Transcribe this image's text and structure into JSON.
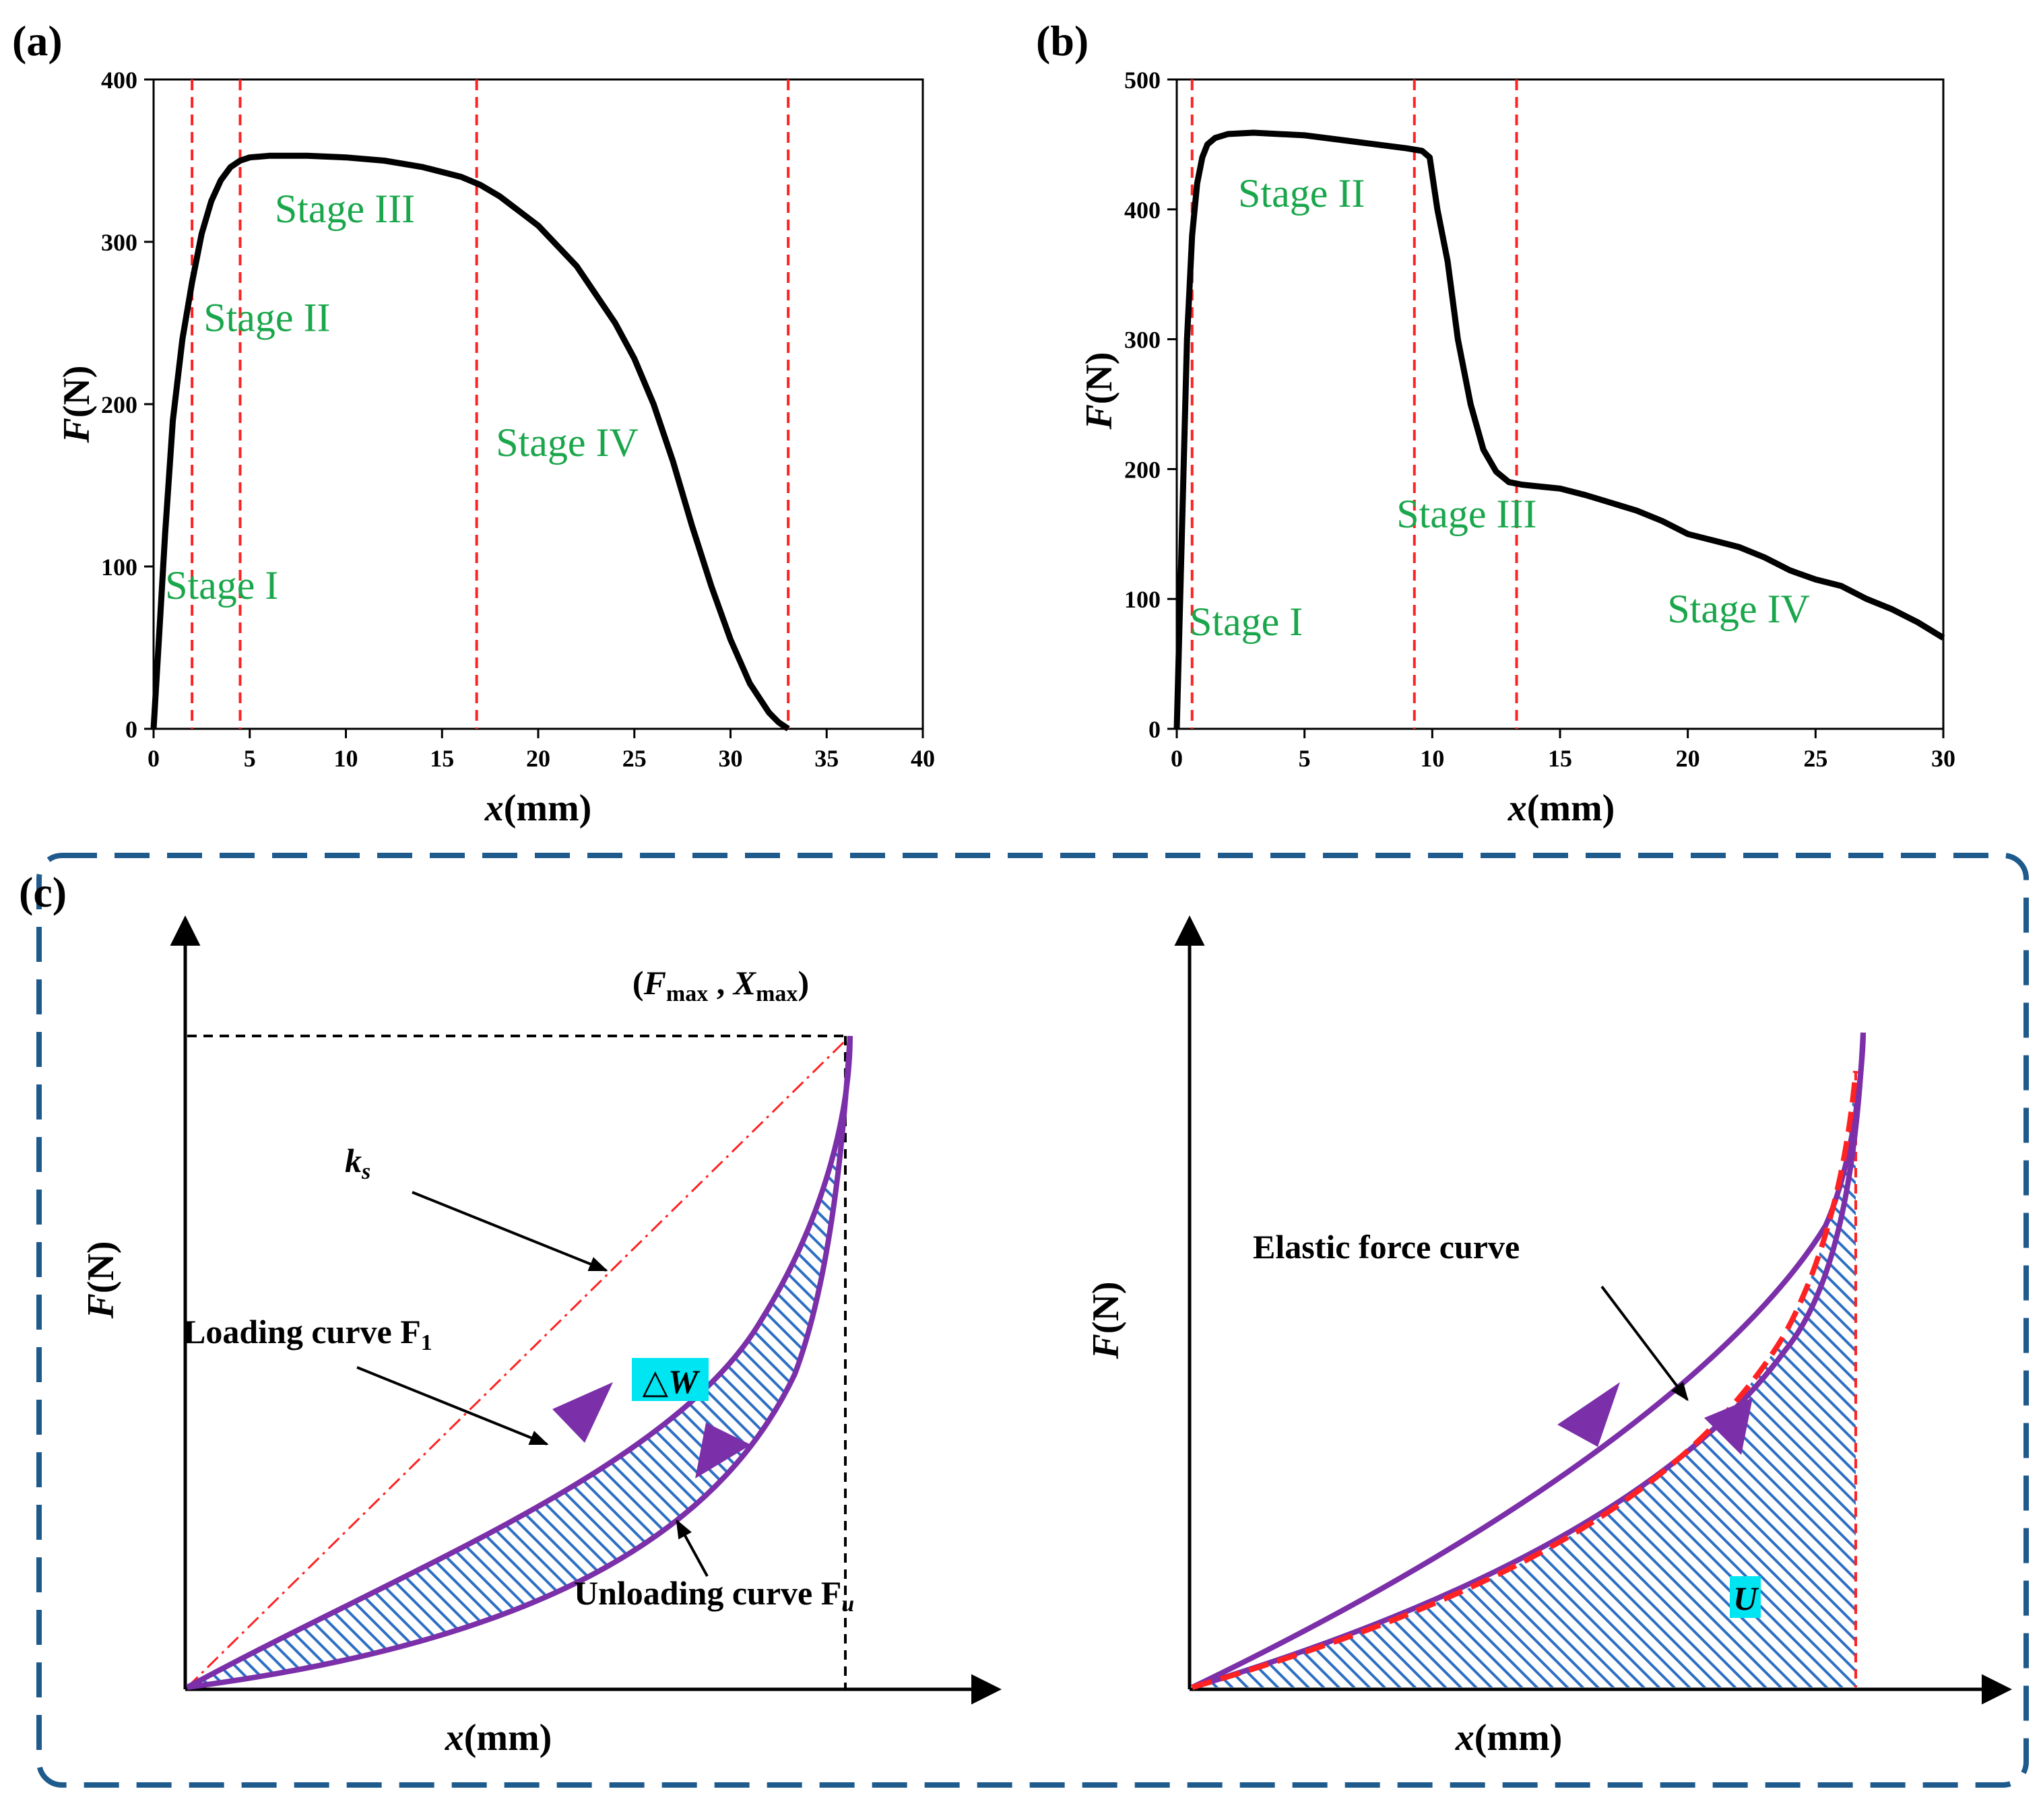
{
  "colors": {
    "curve": "#000000",
    "stage_line": "#ff2222",
    "stage_text": "#1aa64b",
    "purple": "#7b2fa8",
    "hatch": "#2e6fc4",
    "highlight": "#00e5f2",
    "frame": "#1f5a8c",
    "ks_line": "#ff2222",
    "elastic": "#ff2222"
  },
  "chart_data": [
    {
      "panel": "(a)",
      "type": "line",
      "xlabel_var": "x",
      "xlabel_unit": "(mm)",
      "ylabel_var": "F",
      "ylabel_unit": "(N)",
      "xlim": [
        0,
        40
      ],
      "ylim": [
        0,
        400
      ],
      "xticks": [
        0,
        5,
        10,
        15,
        20,
        25,
        30,
        35,
        40
      ],
      "yticks": [
        0,
        100,
        200,
        300,
        400
      ],
      "stage_lines": [
        2.0,
        4.5,
        16.8,
        33.0
      ],
      "stage_labels": [
        {
          "text": "Stage I",
          "x": 0.6,
          "y": 80
        },
        {
          "text": "Stage II",
          "x": 2.6,
          "y": 245
        },
        {
          "text": "Stage III",
          "x": 6.3,
          "y": 312
        },
        {
          "text": "Stage IV",
          "x": 17.8,
          "y": 168
        }
      ],
      "series": [
        {
          "name": "force",
          "x": [
            0,
            0.3,
            0.6,
            1.0,
            1.5,
            2.0,
            2.5,
            3.0,
            3.5,
            4.0,
            4.5,
            5.0,
            6.0,
            8.0,
            10.0,
            12.0,
            14.0,
            16.0,
            17.0,
            18.0,
            20.0,
            22.0,
            24.0,
            25.0,
            26.0,
            27.0,
            28.0,
            29.0,
            30.0,
            31.0,
            32.0,
            32.5,
            33.0
          ],
          "y": [
            0,
            60,
            120,
            190,
            240,
            275,
            305,
            325,
            338,
            346,
            350,
            352,
            353,
            353,
            352,
            350,
            346,
            340,
            335,
            328,
            310,
            285,
            250,
            228,
            200,
            165,
            125,
            88,
            55,
            28,
            10,
            4,
            0
          ]
        }
      ]
    },
    {
      "panel": "(b)",
      "type": "line",
      "xlabel_var": "x",
      "xlabel_unit": "(mm)",
      "ylabel_var": "F",
      "ylabel_unit": "(N)",
      "xlim": [
        0,
        30
      ],
      "ylim": [
        0,
        500
      ],
      "xticks": [
        0,
        5,
        10,
        15,
        20,
        25,
        30
      ],
      "yticks": [
        0,
        100,
        200,
        300,
        400,
        500
      ],
      "stage_lines": [
        0.6,
        9.3,
        13.3
      ],
      "stage_labels": [
        {
          "text": "Stage I",
          "x": 0.5,
          "y": 72
        },
        {
          "text": "Stage II",
          "x": 2.4,
          "y": 402
        },
        {
          "text": "Stage III",
          "x": 8.6,
          "y": 155
        },
        {
          "text": "Stage IV",
          "x": 19.2,
          "y": 82
        }
      ],
      "series": [
        {
          "name": "force",
          "x": [
            0,
            0.2,
            0.4,
            0.6,
            0.8,
            1.0,
            1.2,
            1.5,
            2.0,
            3.0,
            5.0,
            7.0,
            9.0,
            9.6,
            9.9,
            10.2,
            10.6,
            11.0,
            11.5,
            12.0,
            12.5,
            13.0,
            13.5,
            14.0,
            15.0,
            16.0,
            17.0,
            18.0,
            19.0,
            20.0,
            21.0,
            22.0,
            23.0,
            24.0,
            25.0,
            26.0,
            27.0,
            28.0,
            29.0,
            30.0
          ],
          "y": [
            0,
            150,
            300,
            380,
            420,
            440,
            450,
            455,
            458,
            459,
            457,
            452,
            447,
            445,
            440,
            400,
            360,
            300,
            250,
            215,
            198,
            190,
            188,
            187,
            185,
            180,
            174,
            168,
            160,
            150,
            145,
            140,
            132,
            122,
            115,
            110,
            100,
            92,
            82,
            70
          ]
        }
      ]
    },
    {
      "panel": "(c-left)",
      "type": "schematic",
      "xlabel_var": "x",
      "xlabel_unit": "(mm)",
      "ylabel_var": "F",
      "ylabel_unit": "(N)",
      "labels": {
        "peak_point": "(Fmax , Xmax)",
        "ks": "ks",
        "loading": "Loading curve F",
        "loading_sub": "1",
        "unloading": "Unloading curve F",
        "unloading_sub": "u",
        "energy": "△W"
      }
    },
    {
      "panel": "(c-right)",
      "type": "schematic",
      "xlabel_var": "x",
      "xlabel_unit": "(mm)",
      "ylabel_var": "F",
      "ylabel_unit": "(N)",
      "labels": {
        "elastic": "Elastic force curve",
        "energy": "U"
      }
    }
  ],
  "text": {
    "panel_a": "(a)",
    "panel_b": "(b)",
    "panel_c": "(c)",
    "peak_F": "F",
    "peak_F_sub": "max",
    "peak_X": "X",
    "peak_X_sub": "max",
    "ks_k": "k",
    "ks_sub": "s"
  }
}
